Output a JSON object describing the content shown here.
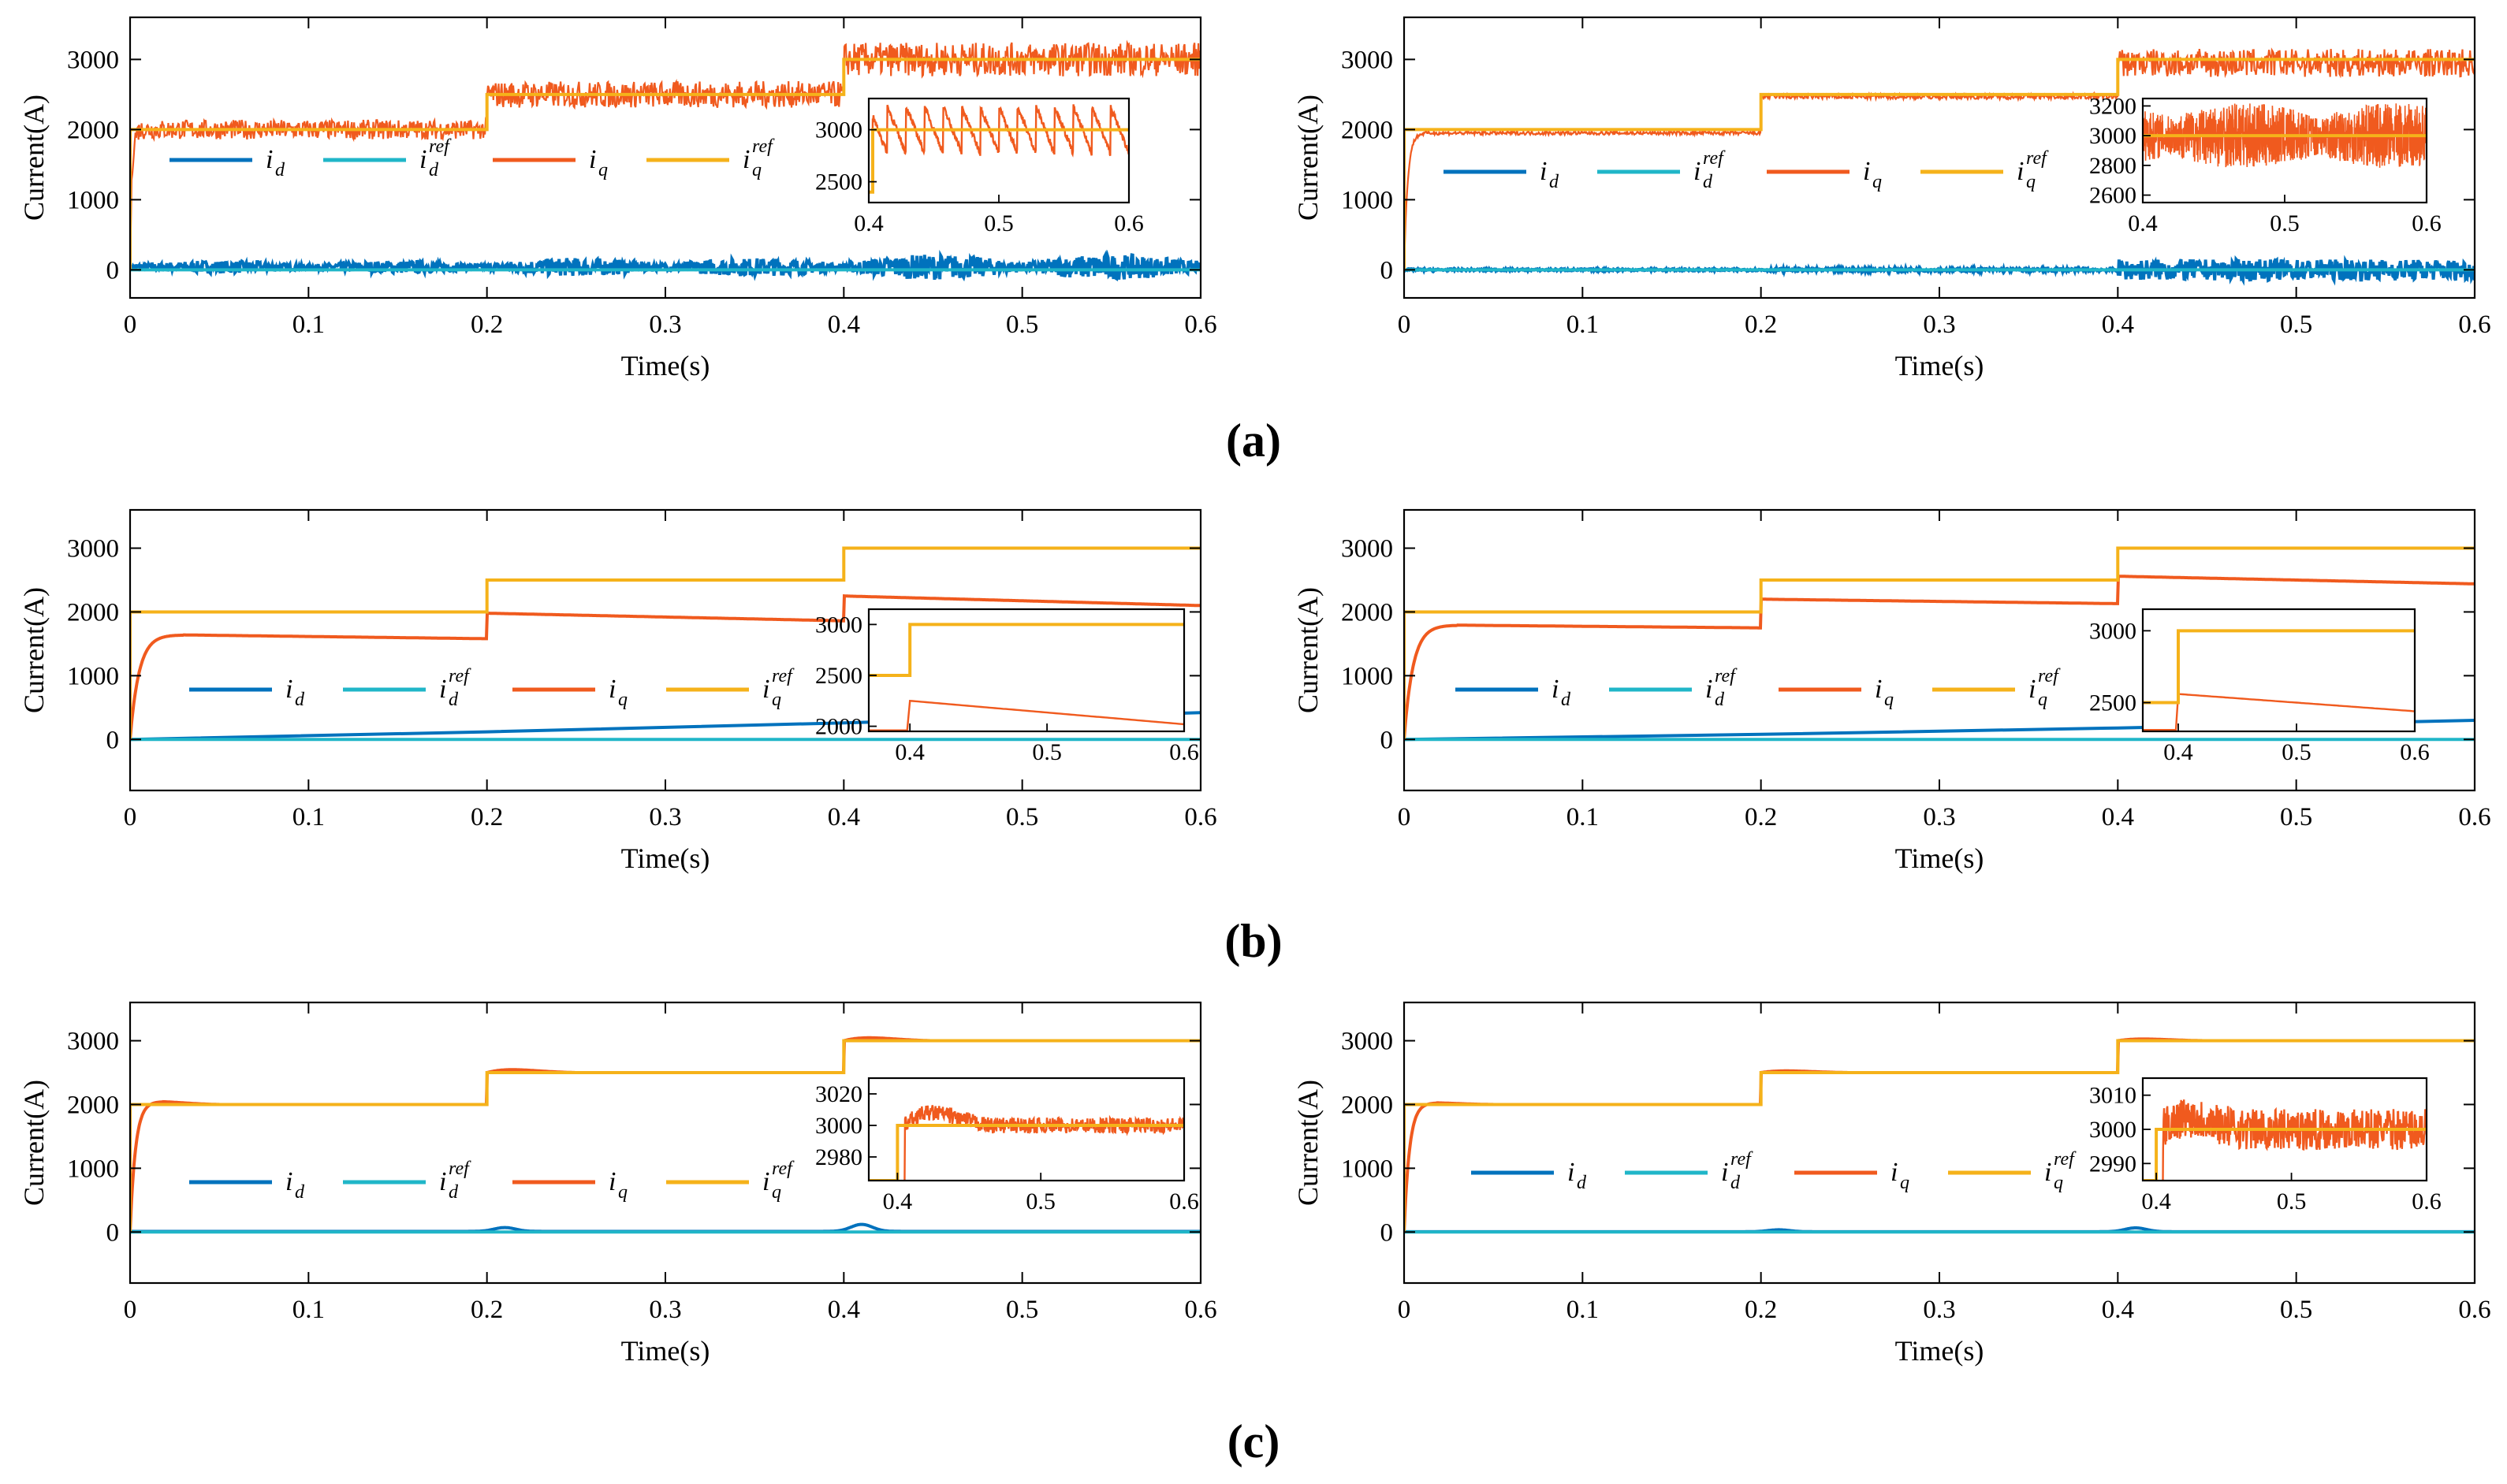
{
  "figure": {
    "panel_labels": [
      "(a)",
      "(b)",
      "(c)"
    ]
  },
  "colors": {
    "id": "#0072BD",
    "id_ref": "#20B6C8",
    "iq": "#F05A1E",
    "iq_ref": "#F5B21A"
  },
  "legend_entries": [
    {
      "base": "i",
      "sub": "d",
      "sup": "",
      "color_key": "id"
    },
    {
      "base": "i",
      "sub": "d",
      "sup": "ref",
      "color_key": "id_ref"
    },
    {
      "base": "i",
      "sub": "q",
      "sup": "",
      "color_key": "iq"
    },
    {
      "base": "i",
      "sub": "q",
      "sup": "ref",
      "color_key": "iq_ref"
    }
  ],
  "chart_data": [
    {
      "panel": "a-left",
      "type": "line",
      "ylabel": "Current(A)",
      "xlabel": "Time(s)",
      "xlim": [
        0,
        0.6
      ],
      "ylim": [
        -400,
        3600
      ],
      "yticks": [
        0,
        1000,
        2000,
        3000
      ],
      "xticks": [
        0,
        0.1,
        0.2,
        0.3,
        0.4,
        0.5,
        0.6
      ],
      "legend_position": "center",
      "grid": false,
      "series": [
        {
          "name": "i_d",
          "model": {
            "base": 40,
            "noise": [
              [
                0,
                0.2,
                90
              ],
              [
                0.2,
                0.4,
                130
              ],
              [
                0.4,
                0.6,
                180
              ]
            ],
            "envelope_freq": 10
          }
        },
        {
          "name": "i_d^ref",
          "steps": [
            [
              0,
              0
            ]
          ]
        },
        {
          "name": "i_q",
          "steps": [
            [
              0,
              2000
            ],
            [
              0.2,
              2500
            ],
            [
              0.4,
              3000
            ]
          ],
          "start_tau": 0.001,
          "ripple": [
            [
              0,
              0.2,
              140
            ],
            [
              0.2,
              0.4,
              190
            ],
            [
              0.4,
              0.6,
              240
            ]
          ]
        },
        {
          "name": "i_q^ref",
          "steps": [
            [
              0,
              2000
            ],
            [
              0.2,
              2500
            ],
            [
              0.4,
              3000
            ]
          ]
        }
      ],
      "inset": {
        "xlim": [
          0.4,
          0.6
        ],
        "ylim": [
          2300,
          3300
        ],
        "yticks": [
          2500,
          3000
        ],
        "xticks": [
          0.4,
          0.5,
          0.6
        ],
        "type": "ripple",
        "ref": 3000,
        "amp": 250,
        "cycles": 14
      }
    },
    {
      "panel": "a-right",
      "type": "line",
      "ylabel": "Current(A)",
      "xlabel": "Time(s)",
      "xlim": [
        0,
        0.6
      ],
      "ylim": [
        -400,
        3600
      ],
      "yticks": [
        0,
        1000,
        2000,
        3000
      ],
      "xticks": [
        0,
        0.1,
        0.2,
        0.3,
        0.4,
        0.5,
        0.6
      ],
      "legend_position": "center",
      "grid": false,
      "series": [
        {
          "name": "i_d",
          "model": {
            "base": 0,
            "noise": [
              [
                0,
                0.2,
                15
              ],
              [
                0.2,
                0.4,
                25
              ],
              [
                0.4,
                0.6,
                150
              ]
            ]
          }
        },
        {
          "name": "i_d^ref",
          "steps": [
            [
              0,
              0
            ]
          ]
        },
        {
          "name": "i_q",
          "steps": [
            [
              0,
              1950
            ],
            [
              0.2,
              2470
            ],
            [
              0.4,
              2950
            ]
          ],
          "start_tau": 0.002,
          "ripple": [
            [
              0,
              0.2,
              25
            ],
            [
              0.2,
              0.4,
              35
            ],
            [
              0.4,
              0.6,
              200
            ]
          ]
        },
        {
          "name": "i_q^ref",
          "steps": [
            [
              0,
              2000
            ],
            [
              0.2,
              2500
            ],
            [
              0.4,
              3000
            ]
          ]
        }
      ],
      "inset": {
        "xlim": [
          0.4,
          0.6
        ],
        "ylim": [
          2550,
          3250
        ],
        "yticks": [
          2600,
          2800,
          3000,
          3200
        ],
        "xticks": [
          0.4,
          0.5,
          0.6
        ],
        "type": "noise",
        "ref": 3000,
        "amp": 220
      }
    },
    {
      "panel": "b-left",
      "type": "line",
      "ylabel": "Current(A)",
      "xlabel": "Time(s)",
      "xlim": [
        0,
        0.6
      ],
      "ylim": [
        -800,
        3600
      ],
      "yticks": [
        0,
        1000,
        2000,
        3000
      ],
      "xticks": [
        0,
        0.1,
        0.2,
        0.3,
        0.4,
        0.5,
        0.6
      ],
      "legend_position": "center",
      "grid": false,
      "series": [
        {
          "name": "i_d",
          "points": [
            [
              0,
              0
            ],
            [
              0.2,
              120
            ],
            [
              0.4,
              260
            ],
            [
              0.6,
              420
            ]
          ]
        },
        {
          "name": "i_d^ref",
          "steps": [
            [
              0,
              0
            ]
          ]
        },
        {
          "name": "i_q",
          "segments": [
            [
              0,
              0.2,
              1650,
              1580
            ],
            [
              0.2,
              0.4,
              1980,
              1860
            ],
            [
              0.4,
              0.6,
              2250,
              2100
            ]
          ],
          "start_tau": 0.005
        },
        {
          "name": "i_q^ref",
          "steps": [
            [
              0,
              2000
            ],
            [
              0.2,
              2500
            ],
            [
              0.4,
              3000
            ]
          ]
        }
      ],
      "inset": {
        "xlim": [
          0.37,
          0.6
        ],
        "ylim": [
          1950,
          3150
        ],
        "yticks": [
          2000,
          2500,
          3000
        ],
        "xticks": [
          0.4,
          0.5,
          0.6
        ],
        "type": "decay",
        "ref_steps": [
          [
            0.37,
            2500
          ],
          [
            0.4,
            3000
          ]
        ],
        "curve": [
          [
            0.4,
            2250
          ],
          [
            0.6,
            2020
          ]
        ]
      }
    },
    {
      "panel": "b-right",
      "type": "line",
      "ylabel": "Current(A)",
      "xlabel": "Time(s)",
      "xlim": [
        0,
        0.6
      ],
      "ylim": [
        -800,
        3600
      ],
      "yticks": [
        0,
        1000,
        2000,
        3000
      ],
      "xticks": [
        0,
        0.1,
        0.2,
        0.3,
        0.4,
        0.5,
        0.6
      ],
      "legend_position": "center",
      "grid": false,
      "series": [
        {
          "name": "i_d",
          "points": [
            [
              0,
              0
            ],
            [
              0.2,
              80
            ],
            [
              0.4,
              180
            ],
            [
              0.6,
              300
            ]
          ]
        },
        {
          "name": "i_d^ref",
          "steps": [
            [
              0,
              0
            ]
          ]
        },
        {
          "name": "i_q",
          "segments": [
            [
              0,
              0.2,
              1800,
              1750
            ],
            [
              0.2,
              0.4,
              2200,
              2130
            ],
            [
              0.4,
              0.6,
              2560,
              2440
            ]
          ],
          "start_tau": 0.005
        },
        {
          "name": "i_q^ref",
          "steps": [
            [
              0,
              2000
            ],
            [
              0.2,
              2500
            ],
            [
              0.4,
              3000
            ]
          ]
        }
      ],
      "inset": {
        "xlim": [
          0.37,
          0.6
        ],
        "ylim": [
          2300,
          3150
        ],
        "yticks": [
          2500,
          3000
        ],
        "xticks": [
          0.4,
          0.5,
          0.6
        ],
        "type": "decay",
        "ref_steps": [
          [
            0.37,
            2500
          ],
          [
            0.4,
            3000
          ]
        ],
        "curve": [
          [
            0.4,
            2560
          ],
          [
            0.6,
            2440
          ]
        ]
      }
    },
    {
      "panel": "c-left",
      "type": "line",
      "ylabel": "Current(A)",
      "xlabel": "Time(s)",
      "xlim": [
        0,
        0.6
      ],
      "ylim": [
        -800,
        3600
      ],
      "yticks": [
        0,
        1000,
        2000,
        3000
      ],
      "xticks": [
        0,
        0.1,
        0.2,
        0.3,
        0.4,
        0.5,
        0.6
      ],
      "legend_position": "center",
      "grid": false,
      "series": [
        {
          "name": "i_d",
          "model": {
            "base": 10,
            "bumps": [
              [
                0.21,
                60
              ],
              [
                0.41,
                110
              ]
            ]
          }
        },
        {
          "name": "i_d^ref",
          "steps": [
            [
              0,
              0
            ]
          ]
        },
        {
          "name": "i_q",
          "steps": [
            [
              0,
              2000
            ],
            [
              0.2,
              2500
            ],
            [
              0.4,
              3000
            ]
          ],
          "overshoot": 120,
          "start_tau": 0.003
        },
        {
          "name": "i_q^ref",
          "steps": [
            [
              0,
              2000
            ],
            [
              0.2,
              2500
            ],
            [
              0.4,
              3000
            ]
          ]
        }
      ],
      "inset": {
        "xlim": [
          0.38,
          0.6
        ],
        "ylim": [
          2965,
          3030
        ],
        "yticks": [
          2980,
          3000,
          3020
        ],
        "xticks": [
          0.4,
          0.5,
          0.6
        ],
        "type": "overshoot",
        "ref_steps": [
          [
            0.38,
            2965
          ],
          [
            0.4,
            3000
          ]
        ],
        "peak": 3018,
        "noise": 5
      }
    },
    {
      "panel": "c-right",
      "type": "line",
      "ylabel": "Current(A)",
      "xlabel": "Time(s)",
      "xlim": [
        0,
        0.6
      ],
      "ylim": [
        -800,
        3600
      ],
      "yticks": [
        0,
        1000,
        2000,
        3000
      ],
      "xticks": [
        0,
        0.1,
        0.2,
        0.3,
        0.4,
        0.5,
        0.6
      ],
      "legend_position": "center",
      "grid": false,
      "series": [
        {
          "name": "i_d",
          "model": {
            "base": 5,
            "bumps": [
              [
                0.21,
                30
              ],
              [
                0.41,
                60
              ]
            ]
          }
        },
        {
          "name": "i_d^ref",
          "steps": [
            [
              0,
              0
            ]
          ]
        },
        {
          "name": "i_q",
          "steps": [
            [
              0,
              2000
            ],
            [
              0.2,
              2500
            ],
            [
              0.4,
              3000
            ]
          ],
          "overshoot": 70,
          "start_tau": 0.003
        },
        {
          "name": "i_q^ref",
          "steps": [
            [
              0,
              2000
            ],
            [
              0.2,
              2500
            ],
            [
              0.4,
              3000
            ]
          ]
        }
      ],
      "inset": {
        "xlim": [
          0.39,
          0.6
        ],
        "ylim": [
          2985,
          3015
        ],
        "yticks": [
          2990,
          3000,
          3010
        ],
        "xticks": [
          0.4,
          0.5,
          0.6
        ],
        "type": "overshoot",
        "ref_steps": [
          [
            0.39,
            2985
          ],
          [
            0.4,
            3000
          ]
        ],
        "peak": 3008,
        "noise": 6
      }
    }
  ]
}
